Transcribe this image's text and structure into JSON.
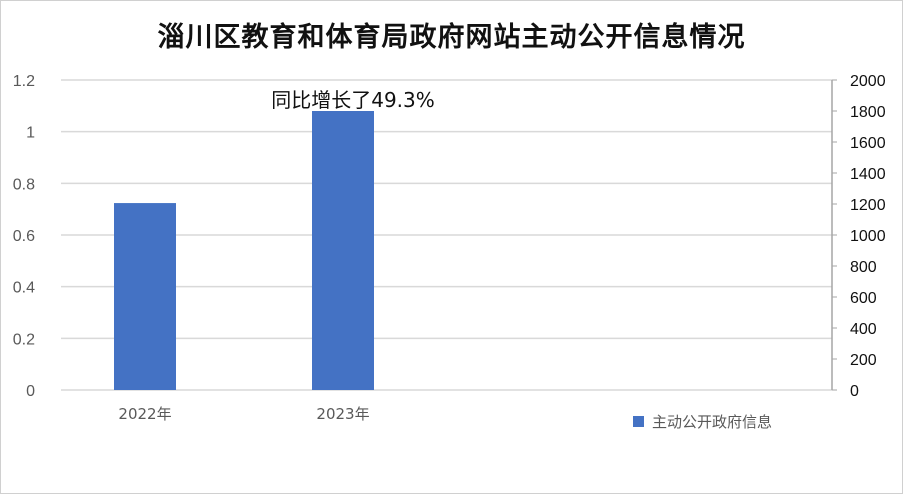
{
  "chart_data": {
    "type": "bar",
    "title": "淄川区教育和体育局政府网站主动公开信息情况",
    "categories": [
      "2022年",
      "2023年"
    ],
    "series": [
      {
        "name": "主动公开政府信息",
        "values": [
          1206,
          1800
        ],
        "axis": "right",
        "color": "#4472C4"
      }
    ],
    "left_axis": {
      "ylim": [
        0,
        1.2
      ],
      "ticks": [
        "0",
        "0.2",
        "0.4",
        "0.6",
        "0.8",
        "1",
        "1.2"
      ]
    },
    "right_axis": {
      "ylim": [
        0,
        2000
      ],
      "ticks": [
        "0",
        "200",
        "400",
        "600",
        "800",
        "1000",
        "1200",
        "1400",
        "1600",
        "1800",
        "2000"
      ]
    },
    "annotations": [
      {
        "text": "同比增长了49.3%",
        "category": "2023年"
      }
    ],
    "grid": true,
    "legend": "bottom-right"
  }
}
